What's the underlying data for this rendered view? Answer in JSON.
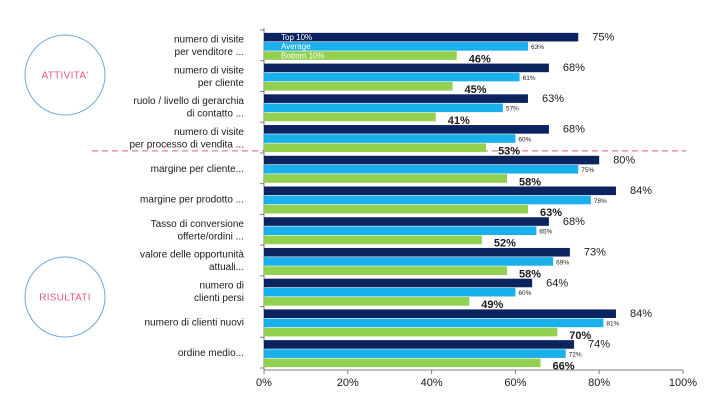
{
  "chart_data": {
    "type": "bar",
    "orientation": "horizontal",
    "categories": [
      [
        "numero di visite",
        "per venditore ..."
      ],
      [
        "numero di visite",
        "per cliente"
      ],
      [
        "ruolo / livello di gerarchia",
        "di contatto ..."
      ],
      [
        "numero di visite",
        "per processo di vendita ..."
      ],
      [
        "margine per cliente..."
      ],
      [
        "margine per prodotto ..."
      ],
      [
        "Tasso di conversione",
        "offerte/ordini ..."
      ],
      [
        "valore delle opportunità",
        "attuali..."
      ],
      [
        "numero di",
        "clienti persi"
      ],
      [
        "numero di clienti nuovi"
      ],
      [
        "ordine medio..."
      ]
    ],
    "series": [
      {
        "name": "Top 10%",
        "color": "#0b2460",
        "values": [
          75,
          68,
          63,
          68,
          80,
          84,
          68,
          73,
          64,
          84,
          74
        ]
      },
      {
        "name": "Average",
        "color": "#1ab0ec",
        "values": [
          63,
          61,
          57,
          60,
          75,
          78,
          65,
          69,
          60,
          81,
          72
        ]
      },
      {
        "name": "Bottom 10%",
        "color": "#92d050",
        "values": [
          46,
          45,
          41,
          53,
          58,
          63,
          52,
          58,
          49,
          70,
          66
        ]
      }
    ],
    "series_value_labels": [
      [
        "75%",
        "68%",
        "63%",
        "68%",
        "80%",
        "84%",
        "68%",
        "73%",
        "64%",
        "84%",
        "74%"
      ],
      [
        "63%",
        "61%",
        "57%",
        "60%",
        "75%",
        "78%",
        "65%",
        "69%",
        "60%",
        "81%",
        "72%"
      ],
      [
        "46%",
        "45%",
        "41%",
        "53%",
        "58%",
        "63%",
        "52%",
        "58%",
        "49%",
        "70%",
        "66%"
      ]
    ],
    "xlim": [
      0,
      100
    ],
    "xticks": [
      0,
      20,
      40,
      60,
      80,
      100
    ],
    "xtick_labels": [
      "0%",
      "20%",
      "40%",
      "60%",
      "80%",
      "100%"
    ],
    "legend": "inside top-left, over first bar group",
    "groups": [
      {
        "label": "ATTIVITA'",
        "rows": [
          0,
          3
        ]
      },
      {
        "label": "RISULTATI",
        "rows": [
          4,
          10
        ]
      }
    ],
    "separator_after_row": 3,
    "separator_color": "#e05a8a",
    "circle_color": "#6fa8dc",
    "group_label_color": "#e05a8a",
    "grid": false
  }
}
